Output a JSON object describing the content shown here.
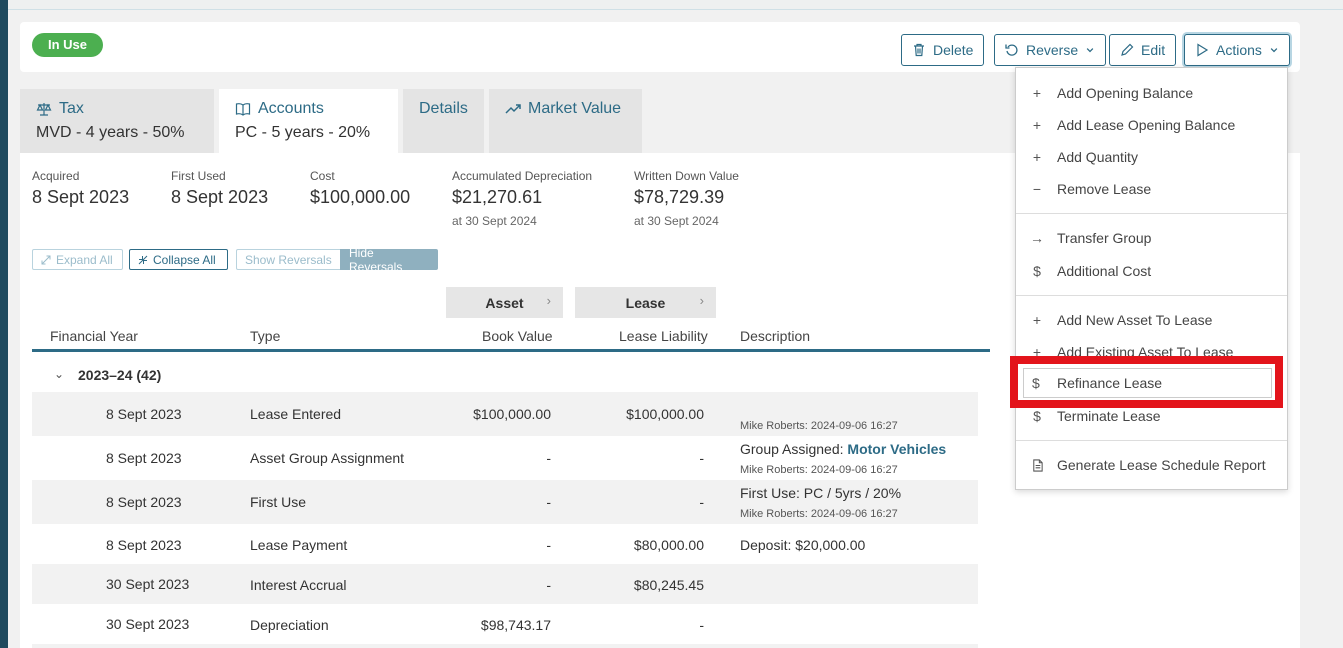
{
  "status_badge": "In Use",
  "toolbar": {
    "delete": "Delete",
    "reverse": "Reverse",
    "edit": "Edit",
    "actions": "Actions"
  },
  "tabs": [
    {
      "label": "Tax",
      "sub": "MVD - 4 years - 50%",
      "icon": "scales-icon"
    },
    {
      "label": "Accounts",
      "sub": "PC - 5 years - 20%",
      "icon": "book-icon"
    },
    {
      "label": "Details",
      "sub": ""
    },
    {
      "label": "Market Value",
      "sub": "",
      "icon": "trend-icon"
    }
  ],
  "summary": {
    "acquired_label": "Acquired",
    "acquired": "8 Sept 2023",
    "first_used_label": "First Used",
    "first_used": "8 Sept 2023",
    "cost_label": "Cost",
    "cost": "$100,000.00",
    "accum_label": "Accumulated Depreciation",
    "accum": "$21,270.61",
    "accum_sub": "at 30 Sept 2024",
    "wdv_label": "Written Down Value",
    "wdv": "$78,729.39",
    "wdv_sub": "at 30 Sept 2024"
  },
  "controls": {
    "expand_all": "Expand All",
    "collapse_all": "Collapse All",
    "show_reversals": "Show Reversals",
    "hide_reversals": "Hide Reversals"
  },
  "groups": {
    "asset": "Asset",
    "lease": "Lease"
  },
  "columns": {
    "financial_year": "Financial Year",
    "type": "Type",
    "book_value": "Book Value",
    "lease_liability": "Lease Liability",
    "description": "Description"
  },
  "year_group": "2023–24 (42)",
  "rows": [
    {
      "date": "8 Sept 2023",
      "type": "Lease Entered",
      "book": "$100,000.00",
      "lease": "$100,000.00",
      "desc": "",
      "desc_link": "",
      "meta": "Mike Roberts: 2024-09-06 16:27"
    },
    {
      "date": "8 Sept 2023",
      "type": "Asset Group Assignment",
      "book": "-",
      "lease": "-",
      "desc": "Group Assigned: ",
      "desc_link": "Motor Vehicles",
      "meta": "Mike Roberts: 2024-09-06 16:27"
    },
    {
      "date": "8 Sept 2023",
      "type": "First Use",
      "book": "-",
      "lease": "-",
      "desc": "First Use: PC / 5yrs / 20%",
      "desc_link": "",
      "meta": "Mike Roberts: 2024-09-06 16:27"
    },
    {
      "date": "8 Sept 2023",
      "type": "Lease Payment",
      "book": "-",
      "lease": "$80,000.00",
      "desc": "Deposit: $20,000.00",
      "desc_link": "",
      "meta": ""
    },
    {
      "date": "30 Sept 2023",
      "type": "Interest Accrual",
      "book": "-",
      "lease": "$80,245.45",
      "desc": "",
      "desc_link": "",
      "meta": ""
    },
    {
      "date": "30 Sept 2023",
      "type": "Depreciation",
      "book": "$98,743.17",
      "lease": "-",
      "desc": "",
      "desc_link": "",
      "meta": ""
    }
  ],
  "actions_menu": [
    {
      "icon": "plus-icon",
      "label": "Add Opening Balance"
    },
    {
      "icon": "plus-icon",
      "label": "Add Lease Opening Balance"
    },
    {
      "icon": "plus-icon",
      "label": "Add Quantity"
    },
    {
      "icon": "minus-icon",
      "label": "Remove Lease"
    },
    {
      "icon": "arrow-right-icon",
      "label": "Transfer Group"
    },
    {
      "icon": "dollar-icon",
      "label": "Additional Cost"
    },
    {
      "icon": "plus-icon",
      "label": "Add New Asset To Lease"
    },
    {
      "icon": "plus-icon",
      "label": "Add Existing Asset To Lease"
    },
    {
      "icon": "dollar-icon",
      "label": "Refinance Lease"
    },
    {
      "icon": "dollar-icon",
      "label": "Terminate Lease"
    },
    {
      "icon": "document-icon",
      "label": "Generate Lease Schedule Report"
    }
  ]
}
